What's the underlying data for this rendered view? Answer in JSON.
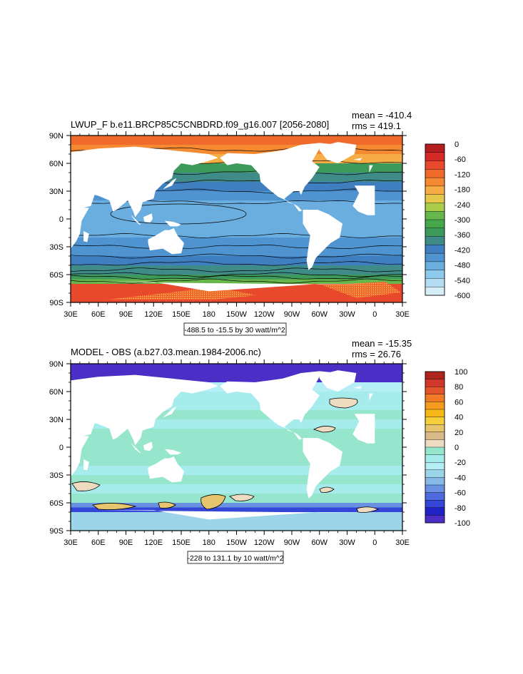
{
  "chart_data": [
    {
      "type": "heatmap",
      "title": "LWUP_F b.e11.BRCP85C5CNBDRD.f09_g16.007 [2056-2080]",
      "mean_label": "mean = -410.4",
      "rms_label": "rms = 419.1",
      "subtitle": "-488.5 to -15.5 by 30 watt/m^2",
      "x_ticks": [
        "30E",
        "60E",
        "90E",
        "120E",
        "150E",
        "180",
        "150W",
        "120W",
        "90W",
        "60W",
        "30W",
        "0",
        "30E"
      ],
      "y_ticks": [
        "90N",
        "60N",
        "30N",
        "0",
        "30S",
        "60S",
        "90S"
      ],
      "colorbar": {
        "labels": [
          "0",
          "-60",
          "-120",
          "-180",
          "-240",
          "-300",
          "-360",
          "-420",
          "-480",
          "-540",
          "-600"
        ],
        "colors": [
          "#b41e1e",
          "#d42b26",
          "#e8492d",
          "#f06a2c",
          "#f58a32",
          "#f6ad45",
          "#e5c84b",
          "#a9cc4a",
          "#67b64b",
          "#45a84a",
          "#3e9a5a",
          "#3f8b87",
          "#3f7fbf",
          "#4f93d0",
          "#6aaee0",
          "#8cc9ec",
          "#b2ddf3",
          "#d6eef8"
        ]
      },
      "bands": [
        {
          "lat": 90,
          "v": -130
        },
        {
          "lat": 80,
          "v": -150
        },
        {
          "lat": 70,
          "v": -170
        },
        {
          "lat": 60,
          "v": -350
        },
        {
          "lat": 50,
          "v": -380
        },
        {
          "lat": 40,
          "v": -420
        },
        {
          "lat": 30,
          "v": -445
        },
        {
          "lat": 20,
          "v": -470
        },
        {
          "lat": 10,
          "v": -480
        },
        {
          "lat": 0,
          "v": -480
        },
        {
          "lat": -10,
          "v": -480
        },
        {
          "lat": -20,
          "v": -465
        },
        {
          "lat": -30,
          "v": -440
        },
        {
          "lat": -40,
          "v": -405
        },
        {
          "lat": -50,
          "v": -370
        },
        {
          "lat": -60,
          "v": -345
        },
        {
          "lat": -65,
          "v": -290
        },
        {
          "lat": -70,
          "v": -100
        }
      ]
    },
    {
      "type": "heatmap",
      "title": "MODEL - OBS (a.b27.03.mean.1984-2006.nc)",
      "mean_label": "mean = -15.35",
      "rms_label": "rms = 26.76",
      "subtitle": "-228 to 131.1 by 10 watt/m^2",
      "x_ticks": [
        "30E",
        "60E",
        "90E",
        "120E",
        "150E",
        "180",
        "150W",
        "120W",
        "90W",
        "60W",
        "30W",
        "0",
        "30E"
      ],
      "y_ticks": [
        "90N",
        "60N",
        "30N",
        "0",
        "30S",
        "60S",
        "90S"
      ],
      "colorbar": {
        "labels": [
          "100",
          "80",
          "60",
          "40",
          "20",
          "0",
          "-20",
          "-40",
          "-60",
          "-80",
          "-100"
        ],
        "colors": [
          "#b0241f",
          "#d1372a",
          "#e4542a",
          "#f07a25",
          "#f59b1f",
          "#f6b919",
          "#f4cf3a",
          "#e7c46e",
          "#d9b98a",
          "#eddcc0",
          "#95e6cd",
          "#a7ecec",
          "#b6eef5",
          "#9cd5ea",
          "#86b8e8",
          "#6a90e2",
          "#4f69de",
          "#3346d7",
          "#2024c7",
          "#4a2ec5"
        ]
      },
      "bands": [
        {
          "lat": 90,
          "v": -110
        },
        {
          "lat": 80,
          "v": -110
        },
        {
          "lat": 70,
          "v": -30
        },
        {
          "lat": 60,
          "v": -15
        },
        {
          "lat": 50,
          "v": -15
        },
        {
          "lat": 40,
          "v": -5
        },
        {
          "lat": 30,
          "v": -15
        },
        {
          "lat": 20,
          "v": -5
        },
        {
          "lat": 10,
          "v": -5
        },
        {
          "lat": 0,
          "v": -5
        },
        {
          "lat": -10,
          "v": -5
        },
        {
          "lat": -20,
          "v": -15
        },
        {
          "lat": -30,
          "v": -5
        },
        {
          "lat": -40,
          "v": -15
        },
        {
          "lat": -50,
          "v": -10
        },
        {
          "lat": -60,
          "v": -60
        },
        {
          "lat": -65,
          "v": -80
        },
        {
          "lat": -70,
          "v": -40
        }
      ]
    }
  ]
}
